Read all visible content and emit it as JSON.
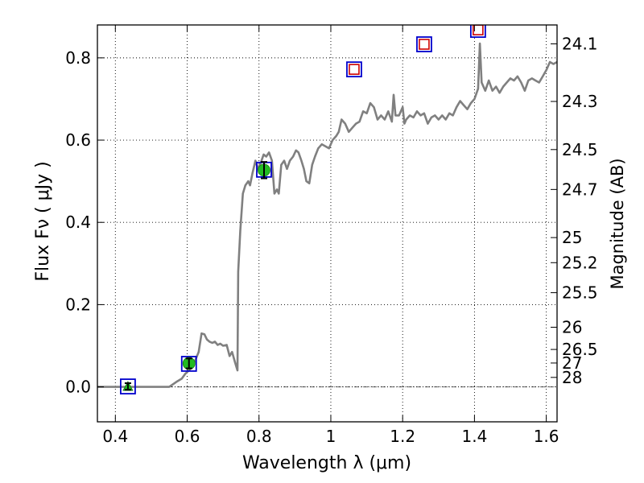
{
  "chart_data": {
    "type": "scatter",
    "xlabel": "Wavelength  λ (μm)",
    "ylabel": "Flux  Fν  ( μJy )",
    "ylabel_right": "Magnitude (AB)",
    "xlim": [
      0.35,
      1.63
    ],
    "ylim": [
      -0.085,
      0.88
    ],
    "grid": true,
    "x_ticks": [
      0.4,
      0.6,
      0.8,
      1.0,
      1.2,
      1.4,
      1.6
    ],
    "x_tick_labels": [
      "0.4",
      "0.6",
      "0.8",
      "1",
      "1.2",
      "1.4",
      "1.6"
    ],
    "y_ticks": [
      0.0,
      0.2,
      0.4,
      0.6,
      0.8
    ],
    "y_tick_labels": [
      "0.0",
      "0.2",
      "0.4",
      "0.6",
      "0.8"
    ],
    "mag_ticks": [
      {
        "label": "24.1",
        "flux": 0.834
      },
      {
        "label": "24.3",
        "flux": 0.694
      },
      {
        "label": "24.5",
        "flux": 0.577
      },
      {
        "label": "24.7",
        "flux": 0.48
      },
      {
        "label": "25",
        "flux": 0.363
      },
      {
        "label": "25.2",
        "flux": 0.302
      },
      {
        "label": "25.5",
        "flux": 0.229
      },
      {
        "label": "26",
        "flux": 0.145
      },
      {
        "label": "26.5",
        "flux": 0.091
      },
      {
        "label": "27",
        "flux": 0.058
      },
      {
        "label": "28",
        "flux": 0.023
      }
    ],
    "series": [
      {
        "kind": "model_sed",
        "color": "#808080",
        "points": [
          [
            0.35,
            0.0
          ],
          [
            0.5,
            0.0
          ],
          [
            0.55,
            0.0
          ],
          [
            0.57,
            0.012
          ],
          [
            0.585,
            0.02
          ],
          [
            0.595,
            0.032
          ],
          [
            0.605,
            0.04
          ],
          [
            0.615,
            0.05
          ],
          [
            0.625,
            0.07
          ],
          [
            0.632,
            0.085
          ],
          [
            0.64,
            0.13
          ],
          [
            0.648,
            0.128
          ],
          [
            0.655,
            0.115
          ],
          [
            0.662,
            0.11
          ],
          [
            0.67,
            0.107
          ],
          [
            0.677,
            0.11
          ],
          [
            0.685,
            0.102
          ],
          [
            0.692,
            0.105
          ],
          [
            0.7,
            0.1
          ],
          [
            0.71,
            0.102
          ],
          [
            0.718,
            0.075
          ],
          [
            0.725,
            0.085
          ],
          [
            0.733,
            0.06
          ],
          [
            0.74,
            0.04
          ],
          [
            0.742,
            0.28
          ],
          [
            0.748,
            0.38
          ],
          [
            0.755,
            0.47
          ],
          [
            0.762,
            0.49
          ],
          [
            0.77,
            0.5
          ],
          [
            0.775,
            0.49
          ],
          [
            0.782,
            0.52
          ],
          [
            0.79,
            0.55
          ],
          [
            0.797,
            0.53
          ],
          [
            0.805,
            0.545
          ],
          [
            0.813,
            0.565
          ],
          [
            0.82,
            0.56
          ],
          [
            0.828,
            0.57
          ],
          [
            0.836,
            0.55
          ],
          [
            0.843,
            0.47
          ],
          [
            0.85,
            0.48
          ],
          [
            0.855,
            0.47
          ],
          [
            0.862,
            0.54
          ],
          [
            0.87,
            0.55
          ],
          [
            0.878,
            0.53
          ],
          [
            0.886,
            0.55
          ],
          [
            0.895,
            0.56
          ],
          [
            0.903,
            0.575
          ],
          [
            0.91,
            0.57
          ],
          [
            0.918,
            0.55
          ],
          [
            0.925,
            0.53
          ],
          [
            0.932,
            0.5
          ],
          [
            0.94,
            0.495
          ],
          [
            0.948,
            0.54
          ],
          [
            0.956,
            0.56
          ],
          [
            0.965,
            0.58
          ],
          [
            0.975,
            0.59
          ],
          [
            0.985,
            0.585
          ],
          [
            0.995,
            0.58
          ],
          [
            1.005,
            0.6
          ],
          [
            1.015,
            0.61
          ],
          [
            1.022,
            0.62
          ],
          [
            1.03,
            0.65
          ],
          [
            1.04,
            0.64
          ],
          [
            1.05,
            0.62
          ],
          [
            1.06,
            0.63
          ],
          [
            1.07,
            0.64
          ],
          [
            1.08,
            0.645
          ],
          [
            1.09,
            0.67
          ],
          [
            1.1,
            0.665
          ],
          [
            1.11,
            0.69
          ],
          [
            1.12,
            0.68
          ],
          [
            1.13,
            0.65
          ],
          [
            1.14,
            0.66
          ],
          [
            1.15,
            0.65
          ],
          [
            1.16,
            0.67
          ],
          [
            1.17,
            0.645
          ],
          [
            1.175,
            0.71
          ],
          [
            1.18,
            0.66
          ],
          [
            1.19,
            0.66
          ],
          [
            1.2,
            0.68
          ],
          [
            1.205,
            0.64
          ],
          [
            1.21,
            0.65
          ],
          [
            1.22,
            0.66
          ],
          [
            1.23,
            0.655
          ],
          [
            1.24,
            0.67
          ],
          [
            1.25,
            0.66
          ],
          [
            1.26,
            0.665
          ],
          [
            1.27,
            0.64
          ],
          [
            1.28,
            0.655
          ],
          [
            1.29,
            0.66
          ],
          [
            1.3,
            0.65
          ],
          [
            1.31,
            0.66
          ],
          [
            1.32,
            0.65
          ],
          [
            1.33,
            0.665
          ],
          [
            1.34,
            0.66
          ],
          [
            1.35,
            0.68
          ],
          [
            1.36,
            0.695
          ],
          [
            1.37,
            0.685
          ],
          [
            1.38,
            0.675
          ],
          [
            1.39,
            0.69
          ],
          [
            1.4,
            0.7
          ],
          [
            1.41,
            0.725
          ],
          [
            1.415,
            0.835
          ],
          [
            1.42,
            0.74
          ],
          [
            1.43,
            0.72
          ],
          [
            1.44,
            0.745
          ],
          [
            1.45,
            0.72
          ],
          [
            1.46,
            0.73
          ],
          [
            1.47,
            0.715
          ],
          [
            1.48,
            0.73
          ],
          [
            1.49,
            0.74
          ],
          [
            1.5,
            0.75
          ],
          [
            1.51,
            0.745
          ],
          [
            1.52,
            0.755
          ],
          [
            1.53,
            0.74
          ],
          [
            1.54,
            0.72
          ],
          [
            1.55,
            0.745
          ],
          [
            1.56,
            0.75
          ],
          [
            1.57,
            0.745
          ],
          [
            1.58,
            0.74
          ],
          [
            1.59,
            0.755
          ],
          [
            1.6,
            0.77
          ],
          [
            1.61,
            0.79
          ],
          [
            1.62,
            0.785
          ],
          [
            1.63,
            0.79
          ]
        ]
      },
      {
        "kind": "photometry_detections",
        "color": "#22bb22",
        "points": [
          {
            "x": 0.435,
            "y": 0.001,
            "err": 0.008,
            "marker": "triangle"
          },
          {
            "x": 0.605,
            "y": 0.057,
            "err": 0.012,
            "marker": "circle"
          },
          {
            "x": 0.814,
            "y": 0.527,
            "err": 0.02,
            "marker": "circle"
          }
        ]
      },
      {
        "kind": "model_bands",
        "color": "#0000cc",
        "points": [
          {
            "x": 0.435,
            "y": 0.001
          },
          {
            "x": 0.605,
            "y": 0.056
          },
          {
            "x": 0.814,
            "y": 0.528
          },
          {
            "x": 1.065,
            "y": 0.772
          },
          {
            "x": 1.26,
            "y": 0.833
          },
          {
            "x": 1.41,
            "y": 0.868
          }
        ]
      },
      {
        "kind": "upper_limits",
        "color": "#cc0000",
        "points": [
          {
            "x": 1.065,
            "y": 0.772
          },
          {
            "x": 1.26,
            "y": 0.833
          },
          {
            "x": 1.41,
            "y": 0.868
          }
        ]
      }
    ]
  }
}
